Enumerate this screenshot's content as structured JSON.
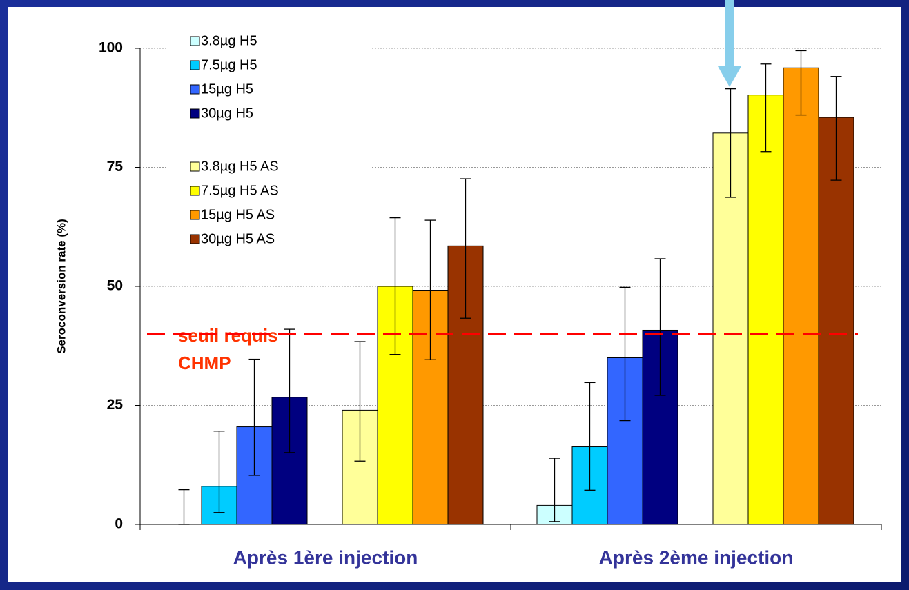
{
  "chart_data": {
    "type": "bar",
    "ylabel": "Seroconversion rate (%)",
    "categories": [
      "Après 1ère injection",
      "Après 2ème injection"
    ],
    "ylim": [
      0,
      100
    ],
    "yticks": [
      0,
      25,
      50,
      75,
      100
    ],
    "grid": true,
    "series": [
      {
        "name": "3.8µg H5",
        "color": "#ccffff",
        "values": [
          0,
          4
        ],
        "lower": [
          0,
          0.6
        ],
        "upper": [
          7.3,
          13.9
        ]
      },
      {
        "name": "7.5µg H5",
        "color": "#00ccff",
        "values": [
          8,
          16.3
        ],
        "lower": [
          2.5,
          7.2
        ],
        "upper": [
          19.6,
          29.8
        ]
      },
      {
        "name": "15µg H5",
        "color": "#3366ff",
        "values": [
          20.5,
          35
        ],
        "lower": [
          10.3,
          21.8
        ],
        "upper": [
          34.7,
          49.8
        ]
      },
      {
        "name": "30µg H5",
        "color": "#000080",
        "values": [
          26.7,
          40.8
        ],
        "lower": [
          15.1,
          27.1
        ],
        "upper": [
          41,
          55.8
        ]
      },
      {
        "name": "3.8µg H5 AS",
        "color": "#ffff99",
        "values": [
          24,
          82.2
        ],
        "lower": [
          13.3,
          68.7
        ],
        "upper": [
          38.4,
          91.5
        ]
      },
      {
        "name": "7.5µg H5 AS",
        "color": "#ffff00",
        "values": [
          50,
          90.2
        ],
        "lower": [
          35.7,
          78.3
        ],
        "upper": [
          64.4,
          96.7
        ]
      },
      {
        "name": "15µg H5 AS",
        "color": "#ff9900",
        "values": [
          49.2,
          95.9
        ],
        "lower": [
          34.6,
          86
        ],
        "upper": [
          63.9,
          99.5
        ]
      },
      {
        "name": "30µg H5 AS",
        "color": "#993300",
        "values": [
          58.5,
          85.5
        ],
        "lower": [
          43.3,
          72.3
        ],
        "upper": [
          72.6,
          94.1
        ]
      }
    ],
    "threshold": {
      "value": 40,
      "color": "#ff0000",
      "label": [
        "seuil requis",
        "CHMP"
      ],
      "label_color": "#ff3300"
    }
  }
}
